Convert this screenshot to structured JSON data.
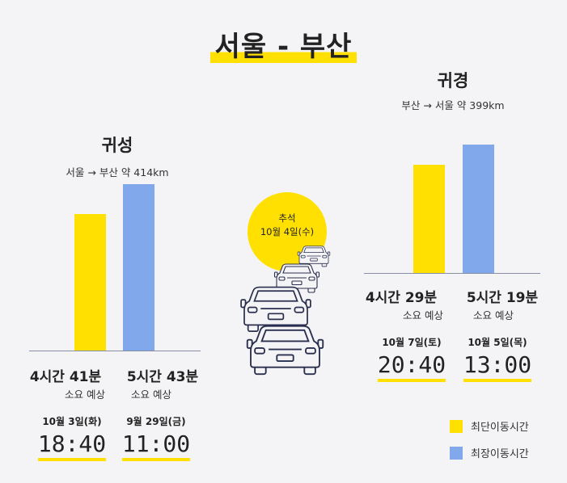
{
  "title": "서울 - 부산",
  "colors": {
    "shortest": "#ffe000",
    "longest": "#81a8ea",
    "accent": "#ffe000",
    "text": "#222222"
  },
  "chart_data": [
    {
      "type": "bar",
      "title": "귀성",
      "subtitle": "서울 → 부산 약 414km",
      "unit": "minutes",
      "categories": [
        "최단이동시간",
        "최장이동시간"
      ],
      "values": [
        281,
        343
      ],
      "labels": [
        "4시간 41분",
        "5시간 43분"
      ],
      "caption": "소요 예상",
      "dates": [
        "10월 3일(화)",
        "9월 29일(금)"
      ],
      "times": [
        "18:40",
        "11:00"
      ]
    },
    {
      "type": "bar",
      "title": "귀경",
      "subtitle": "부산 → 서울 약 399km",
      "unit": "minutes",
      "categories": [
        "최단이동시간",
        "최장이동시간"
      ],
      "values": [
        269,
        319
      ],
      "labels": [
        "4시간 29분",
        "5시간 19분"
      ],
      "caption": "소요 예상",
      "dates": [
        "10월 7일(토)",
        "10월 5일(목)"
      ],
      "times": [
        "20:40",
        "13:00"
      ]
    }
  ],
  "chuseok": {
    "line1": "추석",
    "line2": "10월 4일(수)"
  },
  "legend": [
    {
      "label": "최단이동시간",
      "color": "#ffe000"
    },
    {
      "label": "최장이동시간",
      "color": "#81a8ea"
    }
  ]
}
